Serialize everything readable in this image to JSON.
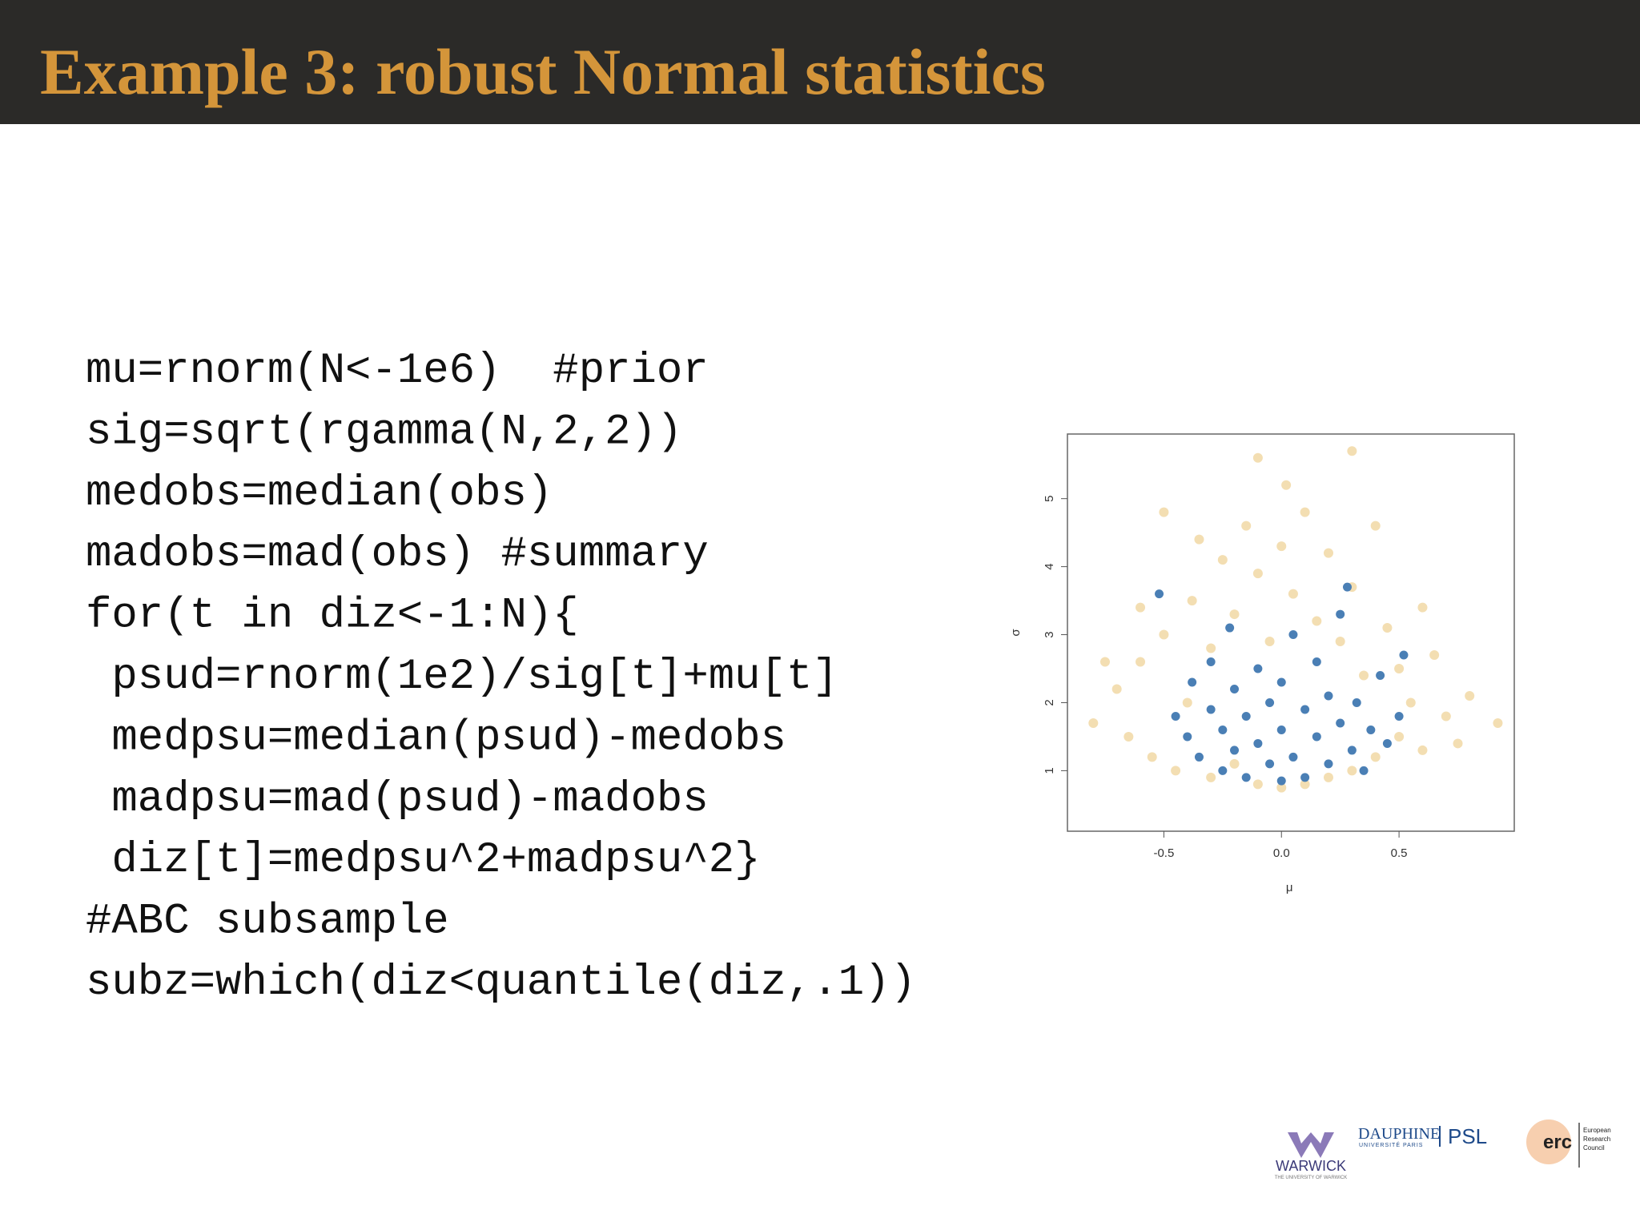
{
  "header": {
    "title": "Example 3: robust Normal statistics"
  },
  "code": {
    "lines": [
      "mu=rnorm(N<-1e6)  #prior",
      "sig=sqrt(rgamma(N,2,2))",
      "medobs=median(obs)",
      "madobs=mad(obs) #summary",
      "for(t in diz<-1:N){",
      " psud=rnorm(1e2)/sig[t]+mu[t]",
      " medpsu=median(psud)-medobs",
      " madpsu=mad(psud)-madobs",
      " diz[t]=medpsu^2+madpsu^2}",
      "#ABC subsample",
      "subz=which(diz<quantile(diz,.1))"
    ]
  },
  "chart_data": {
    "type": "scatter",
    "xlabel": "μ",
    "ylabel": "σ",
    "xlim": [
      -0.91,
      0.99
    ],
    "ylim": [
      0.11,
      5.95
    ],
    "xticks": [
      -0.5,
      {
        "value": 0,
        "label": "0.0"
      },
      0.5
    ],
    "yticks": [
      1,
      2,
      3,
      4,
      5
    ],
    "series": [
      {
        "color": "#f3deb2",
        "x": [
          -0.8,
          -0.7,
          -0.65,
          -0.6,
          -0.55,
          -0.5,
          -0.45,
          -0.4,
          -0.38,
          -0.3,
          -0.3,
          -0.25,
          -0.2,
          -0.2,
          -0.15,
          -0.1,
          -0.1,
          -0.05,
          0.0,
          0.0,
          0.02,
          0.05,
          0.1,
          0.1,
          0.15,
          0.2,
          0.2,
          0.25,
          0.3,
          0.3,
          0.35,
          0.4,
          0.45,
          0.5,
          0.5,
          0.55,
          0.6,
          0.65,
          0.7,
          0.75,
          0.8,
          0.92,
          -0.5,
          -0.1,
          0.3,
          -0.35,
          0.4,
          -0.75,
          0.6,
          -0.6
        ],
        "values": [
          1.7,
          2.2,
          1.5,
          2.6,
          1.2,
          3.0,
          1.0,
          2.0,
          3.5,
          0.9,
          2.8,
          4.1,
          1.1,
          3.3,
          4.6,
          0.8,
          3.9,
          2.9,
          0.75,
          4.3,
          5.2,
          3.6,
          0.8,
          4.8,
          3.2,
          0.9,
          4.2,
          2.9,
          1.0,
          3.7,
          2.4,
          1.2,
          3.1,
          1.5,
          2.5,
          2.0,
          1.3,
          2.7,
          1.8,
          1.4,
          2.1,
          1.7,
          4.8,
          5.6,
          5.7,
          4.4,
          4.6,
          2.6,
          3.4,
          3.4
        ]
      },
      {
        "color": "#4a7fb5",
        "x": [
          -0.52,
          -0.45,
          -0.4,
          -0.38,
          -0.35,
          -0.3,
          -0.3,
          -0.25,
          -0.25,
          -0.2,
          -0.2,
          -0.15,
          -0.15,
          -0.1,
          -0.1,
          -0.05,
          -0.05,
          0.0,
          0.0,
          0.0,
          0.05,
          0.05,
          0.1,
          0.1,
          0.15,
          0.15,
          0.2,
          0.2,
          0.25,
          0.28,
          0.3,
          0.32,
          0.35,
          0.38,
          0.42,
          0.45,
          0.5,
          0.52,
          -0.22,
          0.25
        ],
        "values": [
          3.6,
          1.8,
          1.5,
          2.3,
          1.2,
          1.9,
          2.6,
          1.0,
          1.6,
          2.2,
          1.3,
          0.9,
          1.8,
          2.5,
          1.4,
          1.1,
          2.0,
          0.85,
          1.6,
          2.3,
          3.0,
          1.2,
          1.9,
          0.9,
          1.5,
          2.6,
          1.1,
          2.1,
          1.7,
          3.7,
          1.3,
          2.0,
          1.0,
          1.6,
          2.4,
          1.4,
          1.8,
          2.7,
          3.1,
          3.3
        ]
      }
    ]
  },
  "logos": {
    "warwick": "WARWICK",
    "warwick_sub": "THE UNIVERSITY OF WARWICK",
    "dauphine": "DAUPHINE",
    "dauphine_sub": "UNIVERSITÉ PARIS",
    "psl": "PSL",
    "erc": "erc",
    "erc_lines": [
      "European",
      "Research",
      "Council"
    ]
  }
}
